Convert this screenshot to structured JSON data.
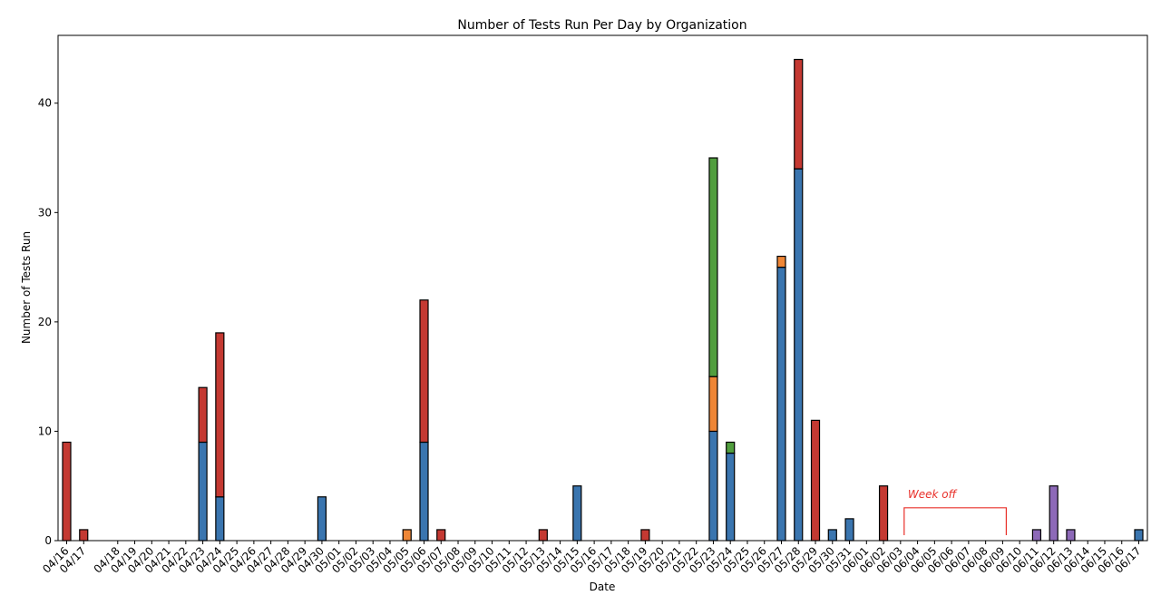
{
  "chart_data": {
    "type": "bar",
    "stacked": true,
    "title": "Number of Tests Run Per Day by Organization",
    "xlabel": "Date",
    "ylabel": "Number of Tests Run",
    "ylim": [
      0,
      46.2
    ],
    "yticks": [
      0,
      10,
      20,
      30,
      40
    ],
    "grid": false,
    "legend": "none",
    "categories": [
      "04/16",
      "04/17",
      "04/18",
      "04/19",
      "04/20",
      "04/21",
      "04/22",
      "04/23",
      "04/24",
      "04/25",
      "04/26",
      "04/27",
      "04/28",
      "04/29",
      "04/30",
      "05/01",
      "05/02",
      "05/03",
      "05/04",
      "05/05",
      "05/06",
      "05/07",
      "05/08",
      "05/09",
      "05/10",
      "05/11",
      "05/12",
      "05/13",
      "05/14",
      "05/15",
      "05/16",
      "05/17",
      "05/18",
      "05/19",
      "05/20",
      "05/21",
      "05/22",
      "05/23",
      "05/24",
      "05/25",
      "05/26",
      "05/27",
      "05/28",
      "05/29",
      "05/30",
      "05/31",
      "06/01",
      "06/02",
      "06/03",
      "06/04",
      "06/05",
      "06/06",
      "06/07",
      "06/08",
      "06/09",
      "06/10",
      "06/11",
      "06/12",
      "06/13",
      "06/14",
      "06/15",
      "06/16",
      "06/17"
    ],
    "bar_positions": [
      0,
      1,
      3,
      4,
      5,
      6,
      7,
      8,
      9,
      10,
      11,
      12,
      13,
      14,
      15,
      16,
      17,
      18,
      19,
      20,
      21,
      22,
      23,
      24,
      25,
      26,
      27,
      28,
      29,
      30,
      31,
      32,
      33,
      34,
      35,
      36,
      37,
      38,
      39,
      40,
      41,
      42,
      43,
      44,
      45,
      46,
      47,
      48,
      49,
      50,
      51,
      52,
      53,
      54,
      55,
      56,
      57,
      58,
      59,
      60,
      61,
      62,
      63
    ],
    "series": [
      {
        "color": "#3a75af",
        "values": [
          0,
          0,
          0,
          0,
          0,
          0,
          0,
          9,
          4,
          0,
          0,
          0,
          0,
          0,
          4,
          0,
          0,
          0,
          0,
          0,
          9,
          0,
          0,
          0,
          0,
          0,
          0,
          0,
          0,
          5,
          0,
          0,
          0,
          0,
          0,
          0,
          0,
          10,
          8,
          0,
          0,
          25,
          34,
          0,
          1,
          2,
          0,
          0,
          0,
          0,
          0,
          0,
          0,
          0,
          0,
          0,
          0,
          0,
          0,
          0,
          0,
          0,
          1
        ]
      },
      {
        "color": "#ef8636",
        "values": [
          0,
          0,
          0,
          0,
          0,
          0,
          0,
          0,
          0,
          0,
          0,
          0,
          0,
          0,
          0,
          0,
          0,
          0,
          0,
          1,
          0,
          0,
          0,
          0,
          0,
          0,
          0,
          0,
          0,
          0,
          0,
          0,
          0,
          0,
          0,
          0,
          0,
          5,
          0,
          0,
          0,
          1,
          0,
          0,
          0,
          0,
          0,
          0,
          0,
          0,
          0,
          0,
          0,
          0,
          0,
          0,
          0,
          0,
          0,
          0,
          0,
          0,
          0
        ]
      },
      {
        "color": "#519e3e",
        "values": [
          0,
          0,
          0,
          0,
          0,
          0,
          0,
          0,
          0,
          0,
          0,
          0,
          0,
          0,
          0,
          0,
          0,
          0,
          0,
          0,
          0,
          0,
          0,
          0,
          0,
          0,
          0,
          0,
          0,
          0,
          0,
          0,
          0,
          0,
          0,
          0,
          0,
          20,
          1,
          0,
          0,
          0,
          0,
          0,
          0,
          0,
          0,
          0,
          0,
          0,
          0,
          0,
          0,
          0,
          0,
          0,
          0,
          0,
          0,
          0,
          0,
          0,
          0
        ]
      },
      {
        "color": "#c43932",
        "values": [
          9,
          1,
          0,
          0,
          0,
          0,
          0,
          5,
          15,
          0,
          0,
          0,
          0,
          0,
          0,
          0,
          0,
          0,
          0,
          0,
          13,
          1,
          0,
          0,
          0,
          0,
          0,
          1,
          0,
          0,
          0,
          0,
          0,
          1,
          0,
          0,
          0,
          0,
          0,
          0,
          0,
          0,
          10,
          11,
          0,
          0,
          0,
          5,
          0,
          0,
          0,
          0,
          0,
          0,
          0,
          0,
          0,
          0,
          0,
          0,
          0,
          0,
          0
        ]
      },
      {
        "color": "#8d69b8",
        "values": [
          0,
          0,
          0,
          0,
          0,
          0,
          0,
          0,
          0,
          0,
          0,
          0,
          0,
          0,
          0,
          0,
          0,
          0,
          0,
          0,
          0,
          0,
          0,
          0,
          0,
          0,
          0,
          0,
          0,
          0,
          0,
          0,
          0,
          0,
          0,
          0,
          0,
          0,
          0,
          0,
          0,
          0,
          0,
          0,
          0,
          0,
          0,
          0,
          0,
          0,
          0,
          0,
          0,
          0,
          0,
          0,
          1,
          5,
          1,
          0,
          0,
          0,
          0
        ]
      }
    ],
    "annotation": {
      "text": "Week off",
      "from": "06/03",
      "to": "06/09",
      "level": 3,
      "color": "#e8302a"
    }
  }
}
